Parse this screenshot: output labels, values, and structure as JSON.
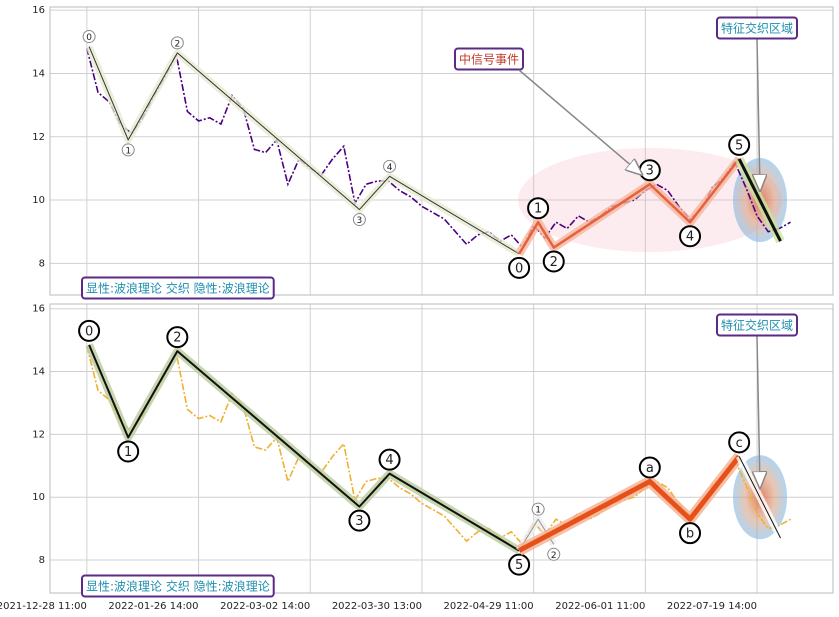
{
  "chart_data": [
    {
      "type": "line",
      "xlim": [
        -33,
        668
      ],
      "ylim": [
        7,
        16.1
      ],
      "xticks": [
        0,
        100,
        200,
        300,
        400,
        500,
        600
      ],
      "yticks": [
        8,
        10,
        12,
        14,
        16
      ],
      "grid": true,
      "series": [
        {
          "color": "#4b0082",
          "x": [
            0,
            10,
            20,
            30,
            40,
            50,
            60,
            70,
            80,
            90,
            100,
            110,
            120,
            130,
            140,
            150,
            160,
            170,
            180,
            190,
            200,
            210,
            220,
            230,
            240,
            250,
            260,
            270,
            280,
            290,
            300,
            310,
            320,
            330,
            340,
            350,
            360,
            370,
            380,
            390,
            400,
            410,
            420,
            430,
            440,
            450,
            460,
            470,
            480,
            490,
            500,
            510,
            520,
            530,
            540,
            550,
            560,
            570,
            580,
            590,
            600,
            610,
            620,
            630
          ],
          "values": [
            14.8,
            13.4,
            13.1,
            12.4,
            12.1,
            12.6,
            13.3,
            13.9,
            14.6,
            12.8,
            12.5,
            12.6,
            12.4,
            13.3,
            12.9,
            11.6,
            11.5,
            11.9,
            10.5,
            11.3,
            11.0,
            10.8,
            11.3,
            11.7,
            9.9,
            10.5,
            10.6,
            10.6,
            10.3,
            10.1,
            9.8,
            9.6,
            9.4,
            9.0,
            8.6,
            8.9,
            9.0,
            8.7,
            8.9,
            8.5,
            9.2,
            8.8,
            9.3,
            9.1,
            9.5,
            9.3,
            9.5,
            9.8,
            9.9,
            10.0,
            10.3,
            10.5,
            10.3,
            9.8,
            9.4,
            9.7,
            10.4,
            10.7,
            11.2,
            10.4,
            9.5,
            9.0,
            9.1,
            9.3
          ]
        }
      ],
      "waves": [
        {
          "color": "#333333",
          "halo": "#e6ead0",
          "width": 1,
          "label_size": "small",
          "points": [
            {
              "x": 2,
              "y": 14.85,
              "label": "0"
            },
            {
              "x": 37,
              "y": 11.9,
              "label": "1"
            },
            {
              "x": 81,
              "y": 14.65,
              "label": "2"
            },
            {
              "x": 244,
              "y": 9.7,
              "label": "3"
            },
            {
              "x": 271,
              "y": 10.75,
              "label": "4"
            },
            {
              "x": 387,
              "y": 8.3,
              "label": "5"
            }
          ]
        },
        {
          "color": "#e8603c",
          "halo": "#f2b8a0",
          "width": 2.5,
          "label_size": "large",
          "points": [
            {
              "x": 387,
              "y": 8.3,
              "label": "0"
            },
            {
              "x": 404,
              "y": 9.3,
              "label": "1"
            },
            {
              "x": 418,
              "y": 8.5,
              "label": "2"
            },
            {
              "x": 504,
              "y": 10.5,
              "label": "3"
            },
            {
              "x": 540,
              "y": 9.3,
              "label": "4"
            },
            {
              "x": 584,
              "y": 11.3,
              "label": "5"
            }
          ]
        },
        {
          "color": "#111111",
          "halo": "#c8e6a0",
          "width": 3,
          "label_size": "small",
          "points": [
            {
              "x": 584,
              "y": 11.3
            },
            {
              "x": 621,
              "y": 8.7
            }
          ]
        }
      ],
      "annotations": [
        "显性:波浪理论 交织 隐性:波浪理论",
        "特征交织区域",
        "中信号事件"
      ]
    },
    {
      "type": "line",
      "xlim": [
        -33,
        668
      ],
      "ylim": [
        6.95,
        16.15
      ],
      "xticks": [
        {
          "value": 0,
          "label": "2021-12-28 11:00"
        },
        {
          "value": 100,
          "label": "2022-01-26 14:00"
        },
        {
          "value": 200,
          "label": "2022-03-02 14:00"
        },
        {
          "value": 300,
          "label": "2022-03-30 13:00"
        },
        {
          "value": 400,
          "label": "2022-04-29 11:00"
        },
        {
          "value": 500,
          "label": "2022-06-01 11:00"
        },
        {
          "value": 600,
          "label": "2022-07-19 14:00"
        }
      ],
      "yticks": [
        8,
        10,
        12,
        14,
        16
      ],
      "grid": true,
      "series": [
        {
          "color": "#f0b030",
          "x": [
            0,
            10,
            20,
            30,
            40,
            50,
            60,
            70,
            80,
            90,
            100,
            110,
            120,
            130,
            140,
            150,
            160,
            170,
            180,
            190,
            200,
            210,
            220,
            230,
            240,
            250,
            260,
            270,
            280,
            290,
            300,
            310,
            320,
            330,
            340,
            350,
            360,
            370,
            380,
            390,
            400,
            410,
            420,
            430,
            440,
            450,
            460,
            470,
            480,
            490,
            500,
            510,
            520,
            530,
            540,
            550,
            560,
            570,
            580,
            590,
            600,
            610,
            620,
            630
          ],
          "values": [
            14.8,
            13.4,
            13.1,
            12.4,
            12.1,
            12.6,
            13.3,
            13.9,
            14.6,
            12.8,
            12.5,
            12.6,
            12.4,
            13.3,
            12.9,
            11.6,
            11.5,
            11.9,
            10.5,
            11.3,
            11.0,
            10.8,
            11.3,
            11.7,
            9.9,
            10.5,
            10.6,
            10.6,
            10.3,
            10.1,
            9.8,
            9.6,
            9.4,
            9.0,
            8.6,
            8.9,
            9.0,
            8.7,
            8.9,
            8.5,
            9.2,
            8.8,
            9.3,
            9.1,
            9.5,
            9.3,
            9.5,
            9.8,
            9.9,
            10.0,
            10.3,
            10.5,
            10.3,
            9.8,
            9.4,
            9.7,
            10.4,
            10.7,
            11.2,
            10.4,
            9.5,
            9.0,
            9.1,
            9.3
          ]
        }
      ],
      "waves": [
        {
          "color": "#111111",
          "halo": "#b9cc9a",
          "width": 2,
          "label_size": "large",
          "points": [
            {
              "x": 2,
              "y": 14.85,
              "label": "0"
            },
            {
              "x": 37,
              "y": 11.9,
              "label": "1"
            },
            {
              "x": 81,
              "y": 14.65,
              "label": "2"
            },
            {
              "x": 244,
              "y": 9.7,
              "label": "3"
            },
            {
              "x": 271,
              "y": 10.75,
              "label": "4"
            },
            {
              "x": 387,
              "y": 8.3,
              "label": "5"
            }
          ]
        },
        {
          "color": "#999999",
          "halo": "#eeeeee",
          "width": 1,
          "label_size": "small",
          "points": [
            {
              "x": 387,
              "y": 8.3
            },
            {
              "x": 404,
              "y": 9.3,
              "label": "1"
            },
            {
              "x": 418,
              "y": 8.5,
              "label": "2"
            }
          ]
        },
        {
          "color": "#e8501a",
          "halo": "#f4b090",
          "width": 5,
          "label_size": "large",
          "points": [
            {
              "x": 387,
              "y": 8.3
            },
            {
              "x": 504,
              "y": 10.5,
              "label": "a"
            },
            {
              "x": 540,
              "y": 9.3,
              "label": "b"
            },
            {
              "x": 584,
              "y": 11.3,
              "label": "c"
            }
          ]
        },
        {
          "color": "#111111",
          "halo": "#ffffff",
          "width": 1,
          "label_size": "small",
          "points": [
            {
              "x": 584,
              "y": 11.3
            },
            {
              "x": 621,
              "y": 8.7
            }
          ]
        }
      ],
      "annotations": [
        "显性:波浪理论 交织 隐性:波浪理论",
        "特征交织区域"
      ]
    }
  ]
}
